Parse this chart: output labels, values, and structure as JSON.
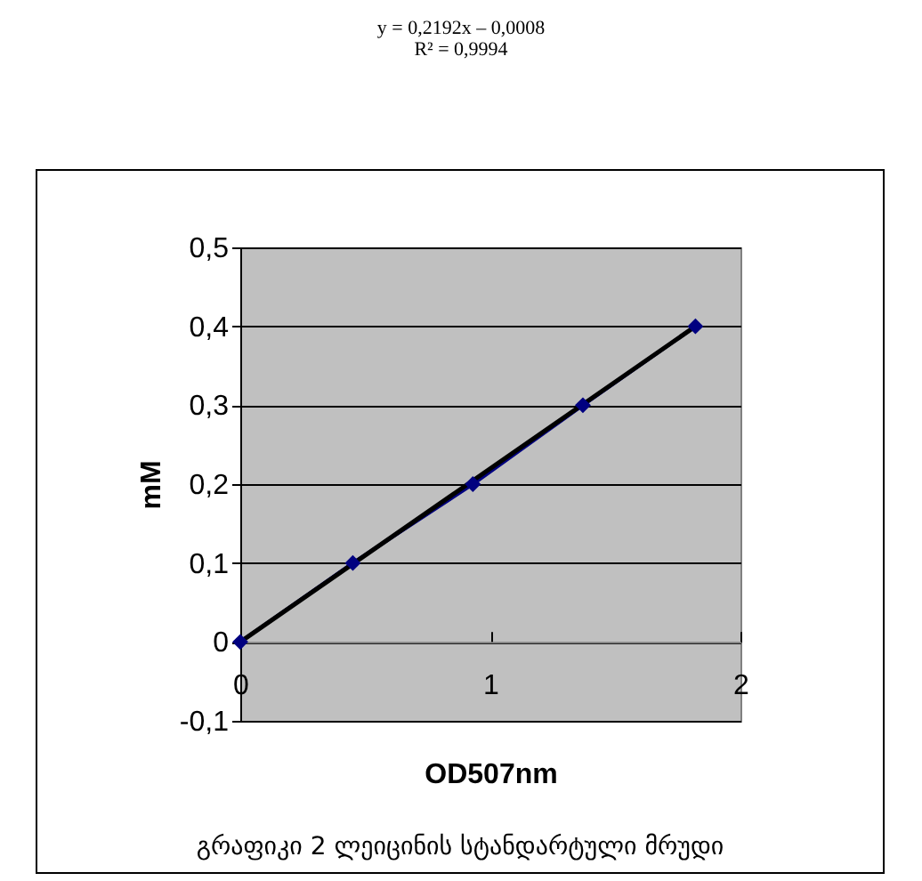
{
  "chart_data": {
    "type": "line",
    "xlabel": "OD507nm",
    "ylabel": "mM",
    "annotations": [
      "y = 0,2192x – 0,0008",
      "R² = 0,9994",
      "გრაფიკი 2 ლეიცინის სტანდარტული მრუდი"
    ],
    "xlim": [
      0,
      2
    ],
    "xticks": [
      {
        "value": 0,
        "label": "0"
      },
      {
        "value": 1,
        "label": "1"
      },
      {
        "value": 2,
        "label": "2"
      }
    ],
    "ylim": [
      -0.1,
      0.5
    ],
    "yticks": [
      {
        "value": -0.1,
        "label": "-0,1"
      },
      {
        "value": 0,
        "label": "0"
      },
      {
        "value": 0.1,
        "label": "0,1"
      },
      {
        "value": 0.2,
        "label": "0,2"
      },
      {
        "value": 0.3,
        "label": "0,3"
      },
      {
        "value": 0.4,
        "label": "0,4"
      },
      {
        "value": 0.5,
        "label": "0,5"
      }
    ],
    "grid": "y",
    "series": [
      {
        "marker": "diamond",
        "color": "#000080",
        "x": [
          0,
          0.45,
          0.93,
          1.37,
          1.82
        ],
        "values": [
          0,
          0.1,
          0.2,
          0.3,
          0.4
        ]
      },
      {
        "type": "line",
        "marker": "none",
        "color": "#000000",
        "x": [
          0,
          1.82
        ],
        "values": [
          0,
          0.4
        ]
      }
    ]
  }
}
